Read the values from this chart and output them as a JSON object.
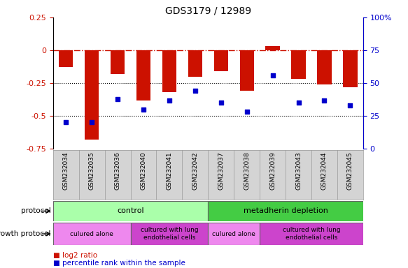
{
  "title": "GDS3179 / 12989",
  "samples": [
    "GSM232034",
    "GSM232035",
    "GSM232036",
    "GSM232040",
    "GSM232041",
    "GSM232042",
    "GSM232037",
    "GSM232038",
    "GSM232039",
    "GSM232043",
    "GSM232044",
    "GSM232045"
  ],
  "log2_ratio": [
    -0.13,
    -0.68,
    -0.18,
    -0.38,
    -0.32,
    -0.2,
    -0.16,
    -0.31,
    0.03,
    -0.22,
    -0.26,
    -0.28
  ],
  "percentile": [
    20,
    20,
    38,
    30,
    37,
    44,
    35,
    28,
    56,
    35,
    37,
    33
  ],
  "bar_color": "#cc1100",
  "dot_color": "#0000cc",
  "ymin": -0.75,
  "ymax": 0.25,
  "y2min": 0,
  "y2max": 100,
  "yticks_left": [
    0.25,
    0.0,
    -0.25,
    -0.5,
    -0.75
  ],
  "ytick_labels_left": [
    "0.25",
    "0",
    "-0.25",
    "-0.5",
    "-0.75"
  ],
  "yticks_right": [
    100,
    75,
    50,
    25,
    0
  ],
  "ytick_labels_right": [
    "100%",
    "75",
    "50",
    "25",
    "0"
  ],
  "dotted_lines": [
    -0.25,
    -0.5
  ],
  "color_light_green": "#aaffaa",
  "color_dark_green": "#44cc44",
  "color_light_purple": "#ee88ee",
  "color_dark_purple": "#cc44cc",
  "ctrl_label": "control",
  "depl_label": "metadherin depletion",
  "alone1_label": "culured alone",
  "lung1_label": "cultured with lung\nendothelial cells",
  "alone2_label": "culured alone",
  "lung2_label": "cultured with lung\nendothelial cells",
  "protocol_label": "protocol",
  "growth_label": "growth protocol",
  "legend_log2": "log2 ratio",
  "legend_pct": "percentile rank within the sample",
  "ctrl_count": 6,
  "dep_count": 6,
  "alone1_count": 3,
  "lung1_count": 3,
  "alone2_count": 2,
  "lung2_count": 4,
  "sample_gray": "#d4d4d4",
  "bar_width": 0.55
}
